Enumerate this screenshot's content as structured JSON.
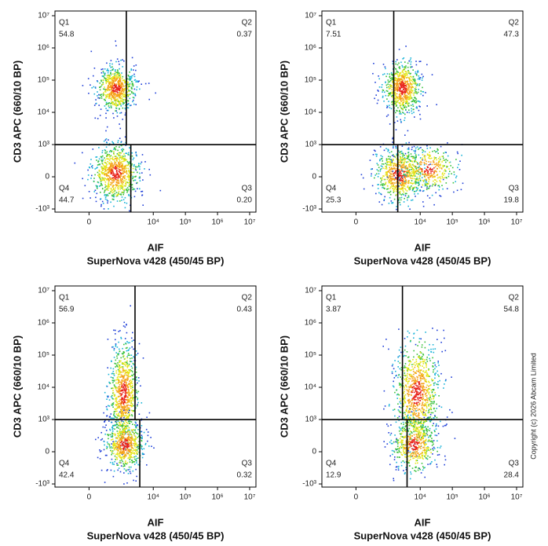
{
  "chart_data": [
    {
      "type": "flow",
      "xlabel": [
        "AIF",
        "SuperNova v428 (450/45 BP)"
      ],
      "ylabel": "CD3 APC (660/10 BP)",
      "xscale": "biexponential",
      "yscale": "biexponential",
      "xlim": [
        -1150,
        15700000
      ],
      "ylim": [
        -1250,
        14000000
      ],
      "xticks": [
        0,
        {
          "value": 10000,
          "label": "10⁴"
        },
        {
          "value": 100000,
          "label": "10⁵"
        },
        {
          "value": 1000000,
          "label": "10⁶"
        },
        {
          "value": 10000000,
          "label": "10⁷"
        }
      ],
      "yticks": [
        {
          "value": -1000,
          "label": "-10³"
        },
        0,
        {
          "value": 1000,
          "label": "10³"
        },
        {
          "value": 10000,
          "label": "10⁴"
        },
        {
          "value": 100000,
          "label": "10⁵"
        },
        {
          "value": 1000000,
          "label": "10⁶"
        },
        {
          "value": 10000000,
          "label": "10⁷"
        }
      ],
      "categories": [
        "Q1",
        "Q2",
        "Q3",
        "Q4"
      ],
      "values": [
        54.8,
        0.37,
        0.2,
        44.7
      ],
      "value_labels": [
        "54.8",
        "0.37",
        "0.20",
        "44.7"
      ],
      "gate": {
        "x_upper": 1450,
        "x_lower": 2000,
        "y": 1000
      },
      "line_color": "#000000"
    },
    {
      "type": "flow",
      "xlabel": [
        "AIF",
        "SuperNova v428 (450/45 BP)"
      ],
      "ylabel": "CD3 APC (660/10 BP)",
      "xscale": "biexponential",
      "yscale": "biexponential",
      "xlim": [
        -1150,
        15700000
      ],
      "ylim": [
        -1250,
        14000000
      ],
      "xticks": [
        0,
        {
          "value": 10000,
          "label": "10⁴"
        },
        {
          "value": 100000,
          "label": "10⁵"
        },
        {
          "value": 1000000,
          "label": "10⁶"
        },
        {
          "value": 10000000,
          "label": "10⁷"
        }
      ],
      "yticks": [
        {
          "value": -1000,
          "label": "-10³"
        },
        0,
        {
          "value": 1000,
          "label": "10³"
        },
        {
          "value": 10000,
          "label": "10⁴"
        },
        {
          "value": 100000,
          "label": "10⁵"
        },
        {
          "value": 1000000,
          "label": "10⁶"
        },
        {
          "value": 10000000,
          "label": "10⁷"
        }
      ],
      "categories": [
        "Q1",
        "Q2",
        "Q3",
        "Q4"
      ],
      "values": [
        7.51,
        47.3,
        19.8,
        25.3
      ],
      "value_labels": [
        "7.51",
        "47.3",
        "19.8",
        "25.3"
      ],
      "gate": {
        "x_upper": 1500,
        "x_lower": 2000,
        "y": 1000
      },
      "line_color": "#000000"
    },
    {
      "type": "flow",
      "xlabel": [
        "AIF",
        "SuperNova v428 (450/45 BP)"
      ],
      "ylabel": "CD3 APC (660/10 BP)",
      "xscale": "biexponential",
      "yscale": "biexponential",
      "xlim": [
        -1150,
        15700000
      ],
      "ylim": [
        -1250,
        14000000
      ],
      "xticks": [
        0,
        {
          "value": 10000,
          "label": "10⁴"
        },
        {
          "value": 100000,
          "label": "10⁵"
        },
        {
          "value": 1000000,
          "label": "10⁶"
        },
        {
          "value": 10000000,
          "label": "10⁷"
        }
      ],
      "yticks": [
        {
          "value": -1000,
          "label": "-10³"
        },
        0,
        {
          "value": 1000,
          "label": "10³"
        },
        {
          "value": 10000,
          "label": "10⁴"
        },
        {
          "value": 100000,
          "label": "10⁵"
        },
        {
          "value": 1000000,
          "label": "10⁶"
        },
        {
          "value": 10000000,
          "label": "10⁷"
        }
      ],
      "categories": [
        "Q1",
        "Q2",
        "Q3",
        "Q4"
      ],
      "values": [
        56.9,
        0.43,
        0.32,
        42.4
      ],
      "value_labels": [
        "56.9",
        "0.43",
        "0.32",
        "42.4"
      ],
      "gate": {
        "x_upper": 2700,
        "x_lower": 3800,
        "y": 1000
      },
      "line_color": "#000000"
    },
    {
      "type": "flow",
      "xlabel": [
        "AIF",
        "SuperNova v428 (450/45 BP)"
      ],
      "ylabel": "CD3 APC (660/10 BP)",
      "xscale": "biexponential",
      "yscale": "biexponential",
      "xlim": [
        -1150,
        15700000
      ],
      "ylim": [
        -1250,
        14000000
      ],
      "xticks": [
        0,
        {
          "value": 10000,
          "label": "10⁴"
        },
        {
          "value": 100000,
          "label": "10⁵"
        },
        {
          "value": 1000000,
          "label": "10⁶"
        },
        {
          "value": 10000000,
          "label": "10⁷"
        }
      ],
      "yticks": [
        {
          "value": -1000,
          "label": "-10³"
        },
        0,
        {
          "value": 1000,
          "label": "10³"
        },
        {
          "value": 10000,
          "label": "10⁴"
        },
        {
          "value": 100000,
          "label": "10⁵"
        },
        {
          "value": 1000000,
          "label": "10⁶"
        },
        {
          "value": 10000000,
          "label": "10⁷"
        }
      ],
      "categories": [
        "Q1",
        "Q2",
        "Q3",
        "Q4"
      ],
      "values": [
        3.87,
        54.8,
        28.4,
        12.9
      ],
      "value_labels": [
        "3.87",
        "54.8",
        "28.4",
        "12.9"
      ],
      "gate": {
        "x_upper": 2800,
        "x_lower": 3900,
        "y": 1000
      },
      "line_color": "#000000"
    }
  ],
  "copyright": "Copyright (c) 2026 Abcam Limited"
}
